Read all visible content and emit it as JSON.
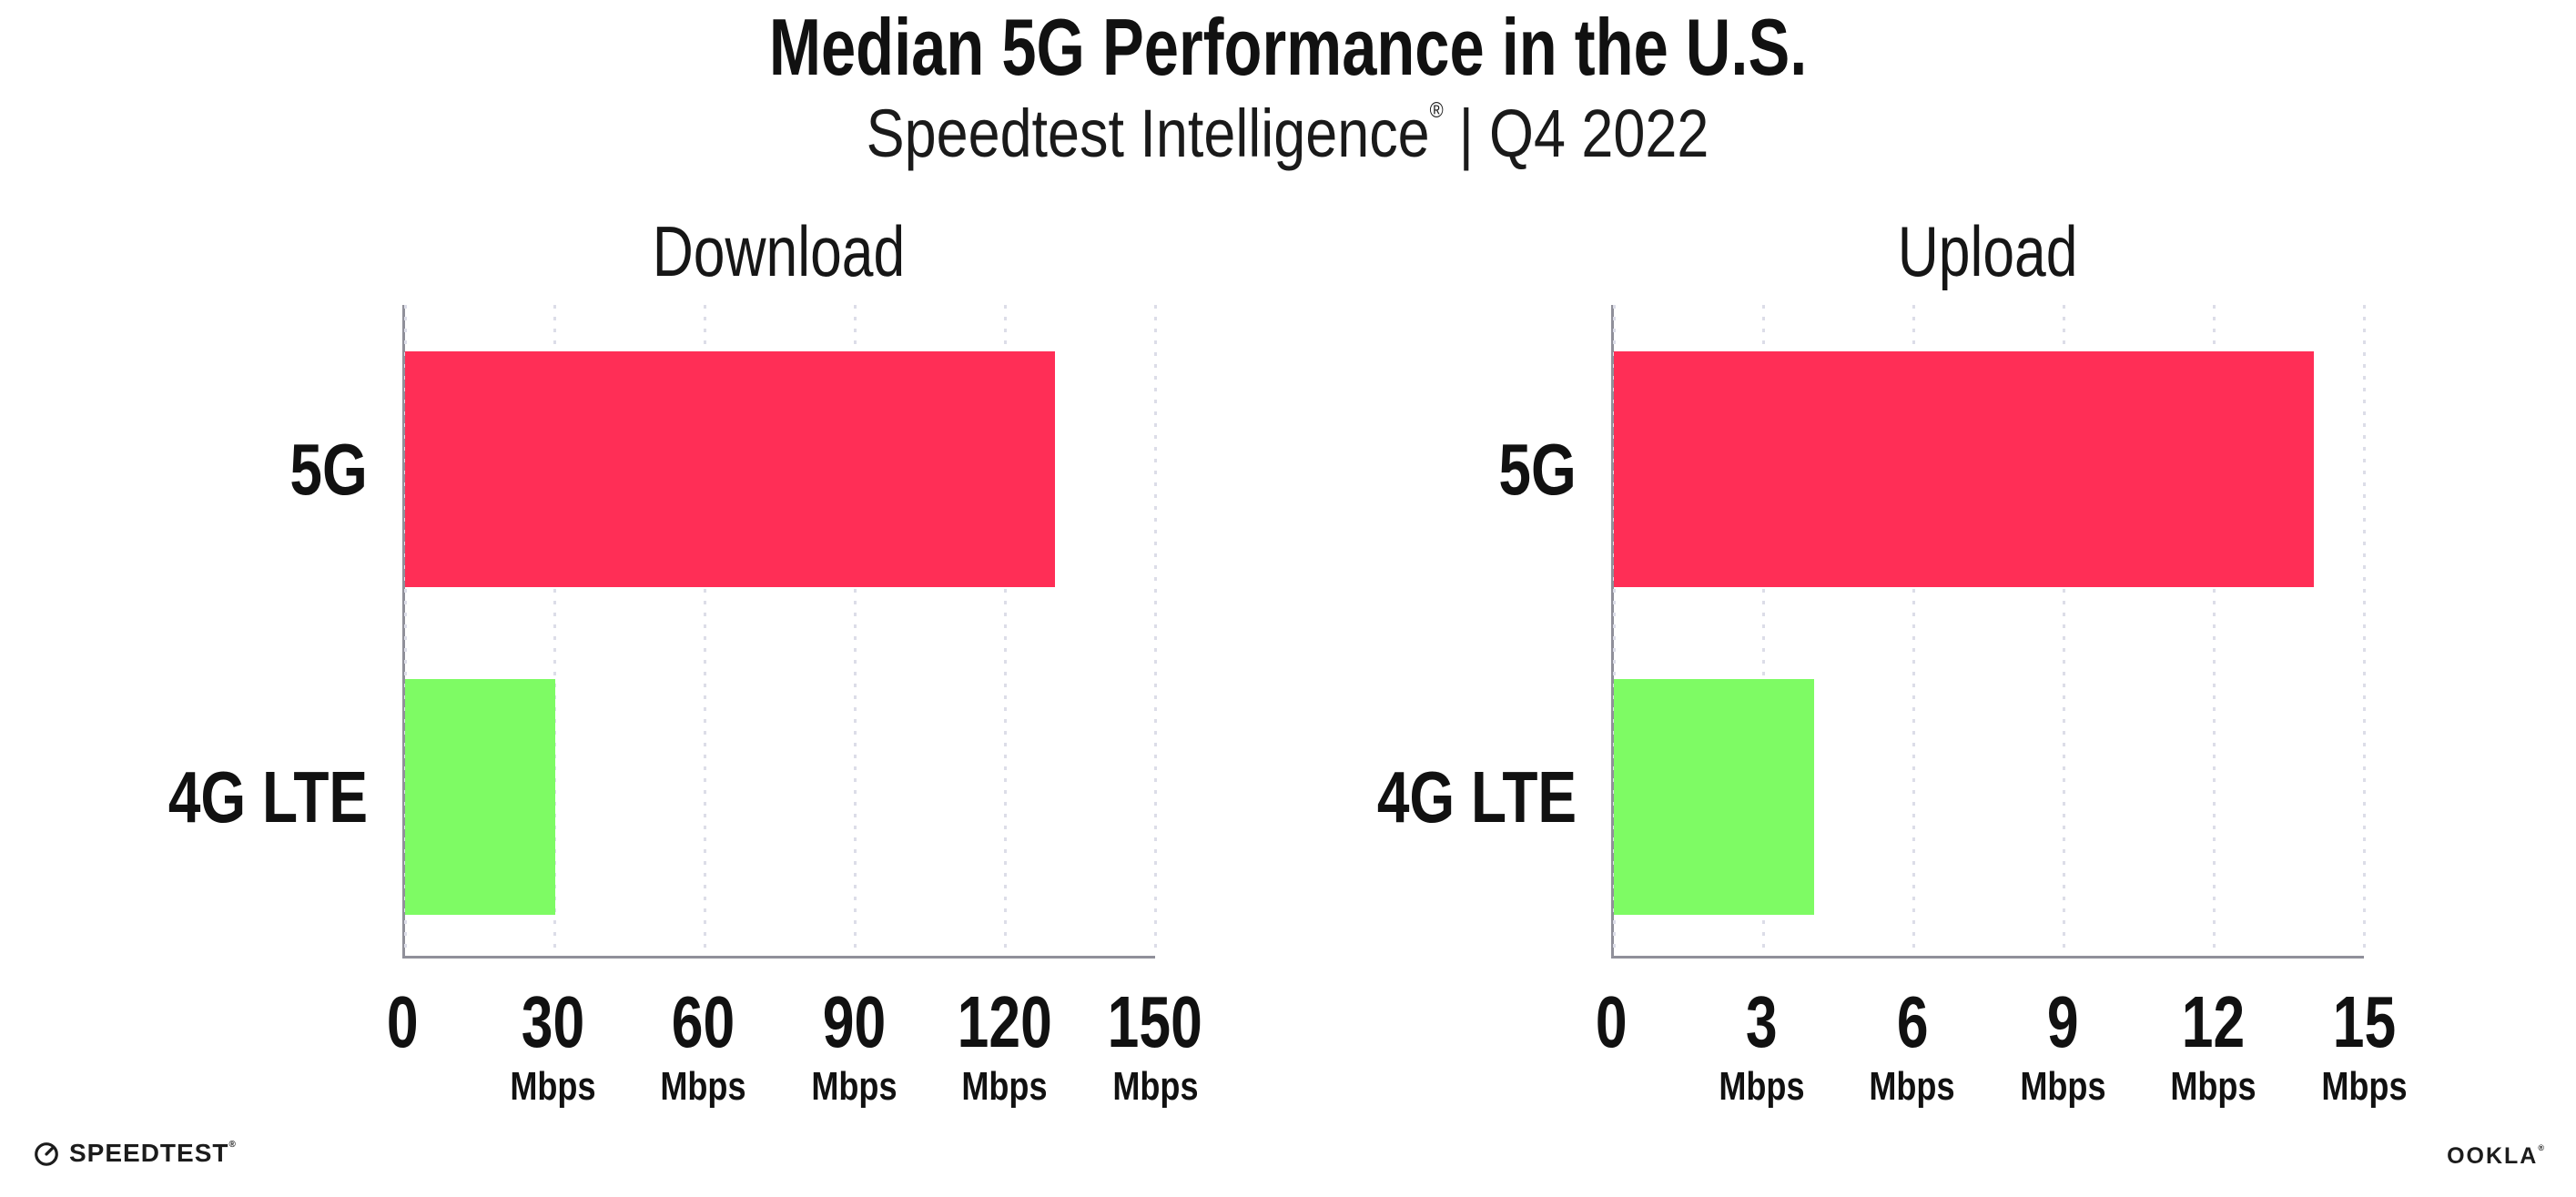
{
  "page": {
    "title": "Median 5G Performance in the U.S.",
    "subtitle": {
      "brand": "Speedtest Intelligence",
      "registered": "®",
      "divider": "|",
      "period": "Q4 2022"
    }
  },
  "footer": {
    "speedtest": {
      "label": "SPEEDTEST",
      "mark": "®"
    },
    "ookla": {
      "label": "OOKLA",
      "mark": "®"
    }
  },
  "colors": {
    "bar_5g": "#ff2e56",
    "bar_4g_lte": "#7efb64",
    "axis": "#90909a",
    "gridline": "#dcdde8",
    "text": "#111111"
  },
  "chart_data": [
    {
      "type": "bar",
      "orientation": "horizontal",
      "title": "Download",
      "categories": [
        "5G",
        "4G LTE"
      ],
      "values": [
        130,
        30
      ],
      "unit": "Mbps",
      "xlabel": "",
      "ylabel": "",
      "xlim": [
        0,
        150
      ],
      "xticks": [
        0,
        30,
        60,
        90,
        120,
        150
      ],
      "bar_colors": [
        "#ff2e56",
        "#7efb64"
      ],
      "grid": "dotted-vertical",
      "legend": "none"
    },
    {
      "type": "bar",
      "orientation": "horizontal",
      "title": "Upload",
      "categories": [
        "5G",
        "4G LTE"
      ],
      "values": [
        14,
        4
      ],
      "unit": "Mbps",
      "xlabel": "",
      "ylabel": "",
      "xlim": [
        0,
        15
      ],
      "xticks": [
        0,
        3,
        6,
        9,
        12,
        15
      ],
      "bar_colors": [
        "#ff2e56",
        "#7efb64"
      ],
      "grid": "dotted-vertical",
      "legend": "none"
    }
  ]
}
